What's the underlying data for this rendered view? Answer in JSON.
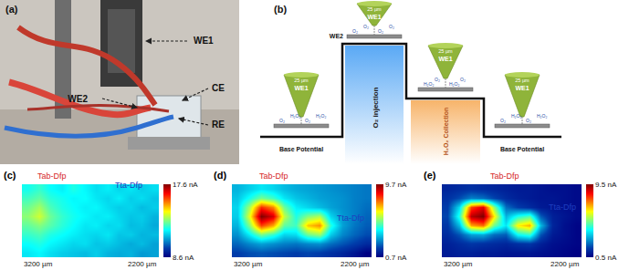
{
  "panel_a": {
    "label": "(a)",
    "callouts": [
      "WE1",
      "WE2",
      "CE",
      "RE"
    ]
  },
  "panel_b": {
    "label": "(b)",
    "tip": "WE1",
    "tip_gap": "25 µm",
    "substrate": "WE2",
    "species": [
      "O₂",
      "H₂O₂"
    ],
    "steps": [
      "Base Potential",
      "O₂ injection",
      "H₂O₂ Collection",
      "Base Potential"
    ]
  },
  "chart_data": [
    {
      "panel": "(c)",
      "type": "heatmap",
      "annotations": [
        "Tab-Dfp",
        "Tta-Dfp"
      ],
      "xlabel": "3200 µm",
      "ylabel": "2200 µm",
      "tick_labels": false,
      "color": "Jet",
      "cells": [
        [
          12.1,
          12.4,
          12.0,
          11.8,
          12.2,
          11.9,
          11.6,
          11.8,
          11.5,
          11.7,
          11.4,
          11.6
        ],
        [
          12.5,
          12.8,
          12.3,
          12.1,
          11.9,
          12.0,
          11.7,
          11.5,
          11.8,
          11.4,
          11.6,
          11.3
        ],
        [
          12.9,
          13.4,
          12.6,
          12.2,
          12.0,
          11.8,
          11.9,
          11.6,
          11.4,
          11.5,
          11.2,
          11.4
        ],
        [
          13.2,
          13.8,
          12.9,
          12.4,
          12.1,
          11.9,
          11.7,
          11.8,
          11.5,
          11.3,
          11.4,
          11.1
        ],
        [
          12.8,
          13.1,
          12.7,
          12.3,
          12.0,
          11.7,
          11.8,
          11.5,
          11.6,
          11.2,
          11.3,
          11.0
        ],
        [
          12.4,
          12.6,
          12.2,
          12.0,
          11.8,
          11.6,
          11.5,
          11.7,
          11.3,
          11.4,
          11.1,
          11.2
        ],
        [
          12.0,
          12.2,
          11.9,
          11.7,
          11.5,
          11.6,
          11.3,
          11.4,
          11.2,
          11.0,
          11.2,
          10.9
        ],
        [
          11.7,
          11.9,
          11.6,
          11.4,
          11.3,
          11.2,
          11.4,
          11.1,
          11.0,
          11.1,
          10.8,
          10.9
        ]
      ],
      "colorbar": {
        "range": [
          8.6,
          17.6
        ],
        "ticks": [
          {
            "value": 8.6,
            "label": "8.6 nA"
          },
          {
            "value": 17.6,
            "label": "17.6 nA"
          }
        ]
      }
    },
    {
      "panel": "(d)",
      "type": "heatmap",
      "annotations": [
        "Tab-Dfp",
        "Tta-Dfp"
      ],
      "xlabel": "3200 µm",
      "ylabel": "2200 µm",
      "tick_labels": false,
      "color": "Jet",
      "cells": [
        [
          3.2,
          3.5,
          3.8,
          3.6,
          3.3,
          3.1,
          3.0,
          2.9,
          2.8,
          2.7,
          2.6,
          2.5
        ],
        [
          3.4,
          4.2,
          5.1,
          4.6,
          3.8,
          3.4,
          3.2,
          3.0,
          2.9,
          2.8,
          2.6,
          2.5
        ],
        [
          3.6,
          5.5,
          8.2,
          7.4,
          5.0,
          3.9,
          3.6,
          3.3,
          3.0,
          2.8,
          2.6,
          2.4
        ],
        [
          3.5,
          6.1,
          9.7,
          8.9,
          5.8,
          4.3,
          5.2,
          5.6,
          3.6,
          2.9,
          2.6,
          2.3
        ],
        [
          3.2,
          5.2,
          8.0,
          7.1,
          4.9,
          4.6,
          6.8,
          7.3,
          4.4,
          3.0,
          2.5,
          2.2
        ],
        [
          2.8,
          3.9,
          5.1,
          4.5,
          3.6,
          3.7,
          5.0,
          5.4,
          3.5,
          2.7,
          2.3,
          2.0
        ],
        [
          2.3,
          2.7,
          3.0,
          2.8,
          2.6,
          2.5,
          2.7,
          2.8,
          2.4,
          2.1,
          1.8,
          1.5
        ],
        [
          1.8,
          2.0,
          2.1,
          2.0,
          1.9,
          1.8,
          1.9,
          1.8,
          1.6,
          1.4,
          1.1,
          0.7
        ]
      ],
      "colorbar": {
        "range": [
          0.7,
          9.7
        ],
        "ticks": [
          {
            "value": 0.7,
            "label": "0.7 nA"
          },
          {
            "value": 9.7,
            "label": "9.7 nA"
          }
        ]
      }
    },
    {
      "panel": "(e)",
      "type": "heatmap",
      "annotations": [
        "Tab-Dfp",
        "Tta-Dfp"
      ],
      "xlabel": "3200 µm",
      "ylabel": "2200 µm",
      "tick_labels": false,
      "color": "Jet",
      "cells": [
        [
          1.2,
          1.3,
          1.4,
          1.3,
          1.2,
          1.1,
          1.0,
          1.0,
          0.9,
          0.8,
          0.8,
          0.7
        ],
        [
          1.4,
          1.8,
          2.4,
          2.2,
          1.7,
          1.3,
          1.1,
          1.0,
          0.9,
          0.9,
          0.8,
          0.7
        ],
        [
          1.6,
          3.5,
          7.8,
          8.6,
          5.1,
          2.2,
          1.6,
          1.3,
          1.0,
          0.9,
          0.8,
          0.7
        ],
        [
          1.7,
          4.2,
          9.0,
          9.5,
          6.3,
          3.0,
          4.1,
          4.6,
          2.0,
          1.1,
          0.9,
          0.7
        ],
        [
          1.5,
          3.1,
          6.9,
          7.4,
          4.8,
          3.6,
          6.2,
          6.8,
          3.1,
          1.2,
          0.8,
          0.6
        ],
        [
          1.3,
          1.9,
          2.8,
          2.9,
          2.2,
          2.0,
          3.9,
          4.3,
          1.9,
          1.0,
          0.8,
          0.6
        ],
        [
          1.1,
          1.3,
          1.5,
          1.4,
          1.3,
          1.2,
          1.4,
          1.5,
          1.1,
          0.8,
          0.7,
          0.6
        ],
        [
          1.0,
          1.1,
          1.1,
          1.0,
          1.0,
          0.9,
          0.9,
          0.9,
          0.8,
          0.7,
          0.6,
          0.5
        ]
      ],
      "colorbar": {
        "range": [
          0.5,
          9.5
        ],
        "ticks": [
          {
            "value": 0.5,
            "label": "0.5 nA"
          },
          {
            "value": 9.5,
            "label": "9.5 nA"
          }
        ]
      }
    }
  ]
}
